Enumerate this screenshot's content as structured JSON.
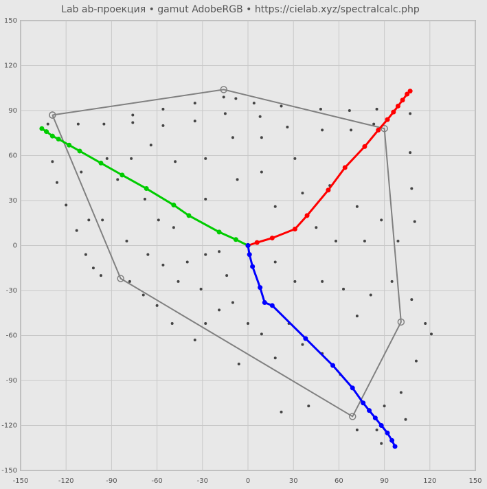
{
  "chart_data": {
    "type": "scatter",
    "title": "Lab ab-проекция  •  gamut AdobeRGB  •  https://cielab.xyz/spectralcalc.php",
    "xlim": [
      -150,
      150
    ],
    "ylim": [
      -150,
      150
    ],
    "xticks": [
      -150,
      -120,
      -90,
      -60,
      -30,
      0,
      30,
      60,
      90,
      120,
      150
    ],
    "yticks": [
      -150,
      -120,
      -90,
      -60,
      -30,
      0,
      30,
      60,
      90,
      120,
      150
    ],
    "grid": true,
    "series": [
      {
        "color": "#444444",
        "line": false,
        "marker": "dot",
        "x": [
          -76,
          -76,
          -56,
          -56,
          -35,
          -35,
          -16,
          -15,
          -8,
          4,
          8,
          22,
          26,
          48,
          49,
          67,
          68,
          85,
          83,
          107,
          107,
          108,
          110,
          -132,
          -129,
          -126,
          -120,
          -113,
          -107,
          -102,
          -97,
          -112,
          -110,
          -105,
          -95,
          -93,
          -96,
          -86,
          -80,
          -78,
          -68,
          -66,
          -69,
          -59,
          -56,
          -60,
          -49,
          -46,
          -50,
          -40,
          -35,
          -31,
          -28,
          -19,
          -14,
          -10,
          -6,
          -7,
          -10,
          -28,
          -28,
          -48,
          -64,
          -77,
          9,
          9,
          18,
          31,
          36,
          45,
          54,
          58,
          72,
          77,
          88,
          99,
          18,
          31,
          49,
          63,
          72,
          81,
          95,
          108,
          117,
          121,
          111,
          101,
          90,
          85,
          72,
          61,
          49,
          36,
          27,
          22,
          40,
          9,
          18,
          0,
          -19,
          -28,
          104,
          88
        ],
        "y": [
          87,
          82,
          91,
          80,
          95,
          83,
          99,
          88,
          98,
          95,
          86,
          93,
          79,
          91,
          77,
          90,
          77,
          91,
          81,
          88,
          62,
          38,
          16,
          81,
          56,
          42,
          27,
          10,
          -6,
          -15,
          -20,
          81,
          49,
          17,
          81,
          58,
          17,
          44,
          3,
          -24,
          31,
          -6,
          -33,
          17,
          -13,
          -40,
          12,
          -24,
          -52,
          -11,
          -63,
          -29,
          -6,
          -4,
          -20,
          -38,
          -79,
          44,
          72,
          58,
          31,
          56,
          67,
          58,
          72,
          49,
          26,
          58,
          35,
          12,
          40,
          3,
          26,
          3,
          17,
          3,
          -11,
          -24,
          -24,
          -29,
          -47,
          -33,
          -24,
          -36,
          -52,
          -59,
          -77,
          -98,
          -107,
          -123,
          -123,
          -86,
          -72,
          -66,
          -52,
          -111,
          -107,
          -59,
          -75,
          -52,
          -43,
          -52,
          -116,
          -132
        ]
      },
      {
        "color": "#808080",
        "line": true,
        "marker": "ring",
        "x": [
          -129,
          -16,
          90,
          101,
          69,
          -84,
          -129
        ],
        "y": [
          87,
          104,
          78,
          -51,
          -114,
          -22,
          87
        ]
      },
      {
        "color": "#ff0000",
        "line": true,
        "marker": "dot",
        "x": [
          0,
          6,
          16,
          31,
          39,
          53,
          64,
          77,
          86,
          92,
          96,
          99,
          102,
          105,
          107
        ],
        "y": [
          0,
          2,
          5,
          11,
          20,
          37,
          52,
          66,
          77,
          84,
          89,
          93,
          97,
          101,
          103
        ]
      },
      {
        "color": "#00cc00",
        "line": true,
        "marker": "dot",
        "x": [
          0,
          -8,
          -19,
          -39,
          -49,
          -67,
          -83,
          -97,
          -111,
          -118,
          -125,
          -129,
          -133,
          -136
        ],
        "y": [
          0,
          4,
          9,
          20,
          27,
          38,
          47,
          55,
          63,
          67,
          71,
          73,
          76,
          78
        ]
      },
      {
        "color": "#0000ff",
        "line": true,
        "marker": "dot",
        "x": [
          0,
          1,
          3,
          8,
          11,
          16,
          38,
          56,
          69,
          76,
          80,
          84,
          88,
          92,
          95,
          97
        ],
        "y": [
          0,
          -6,
          -14,
          -28,
          -38,
          -40,
          -62,
          -80,
          -95,
          -105,
          -110,
          -115,
          -120,
          -125,
          -130,
          -134
        ]
      }
    ]
  }
}
